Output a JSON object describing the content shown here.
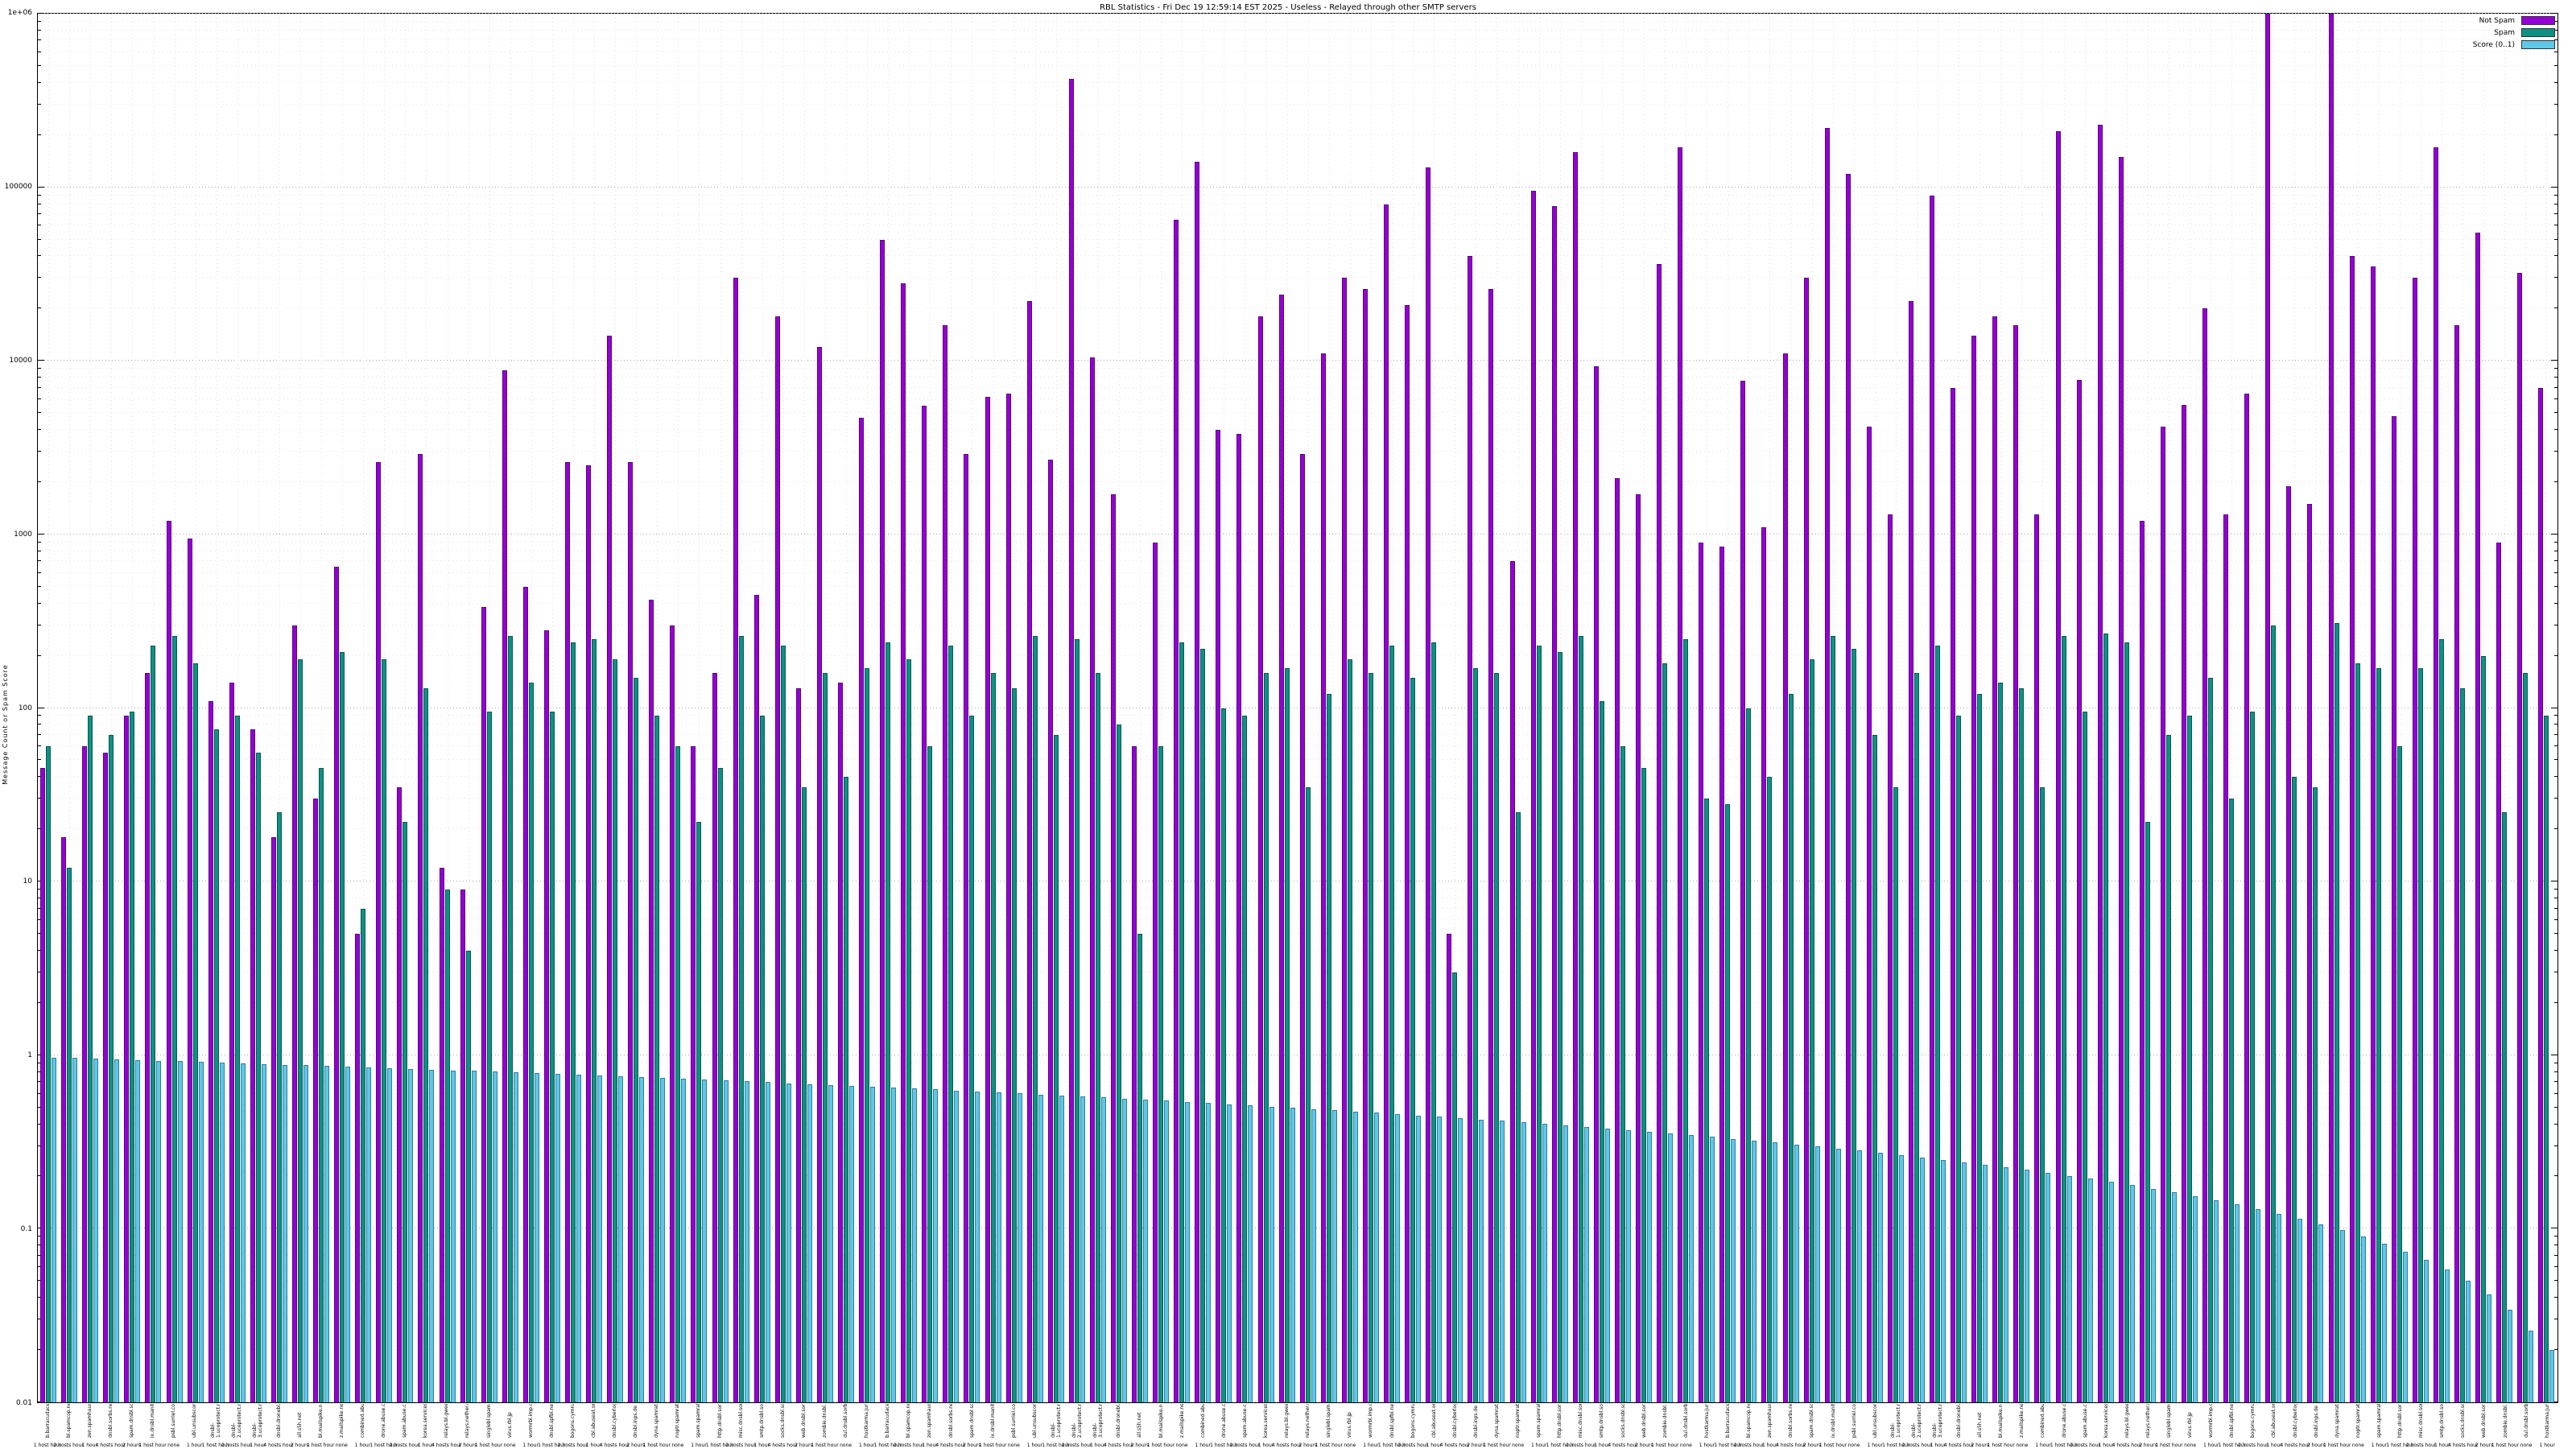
{
  "page": {
    "title": "RBL Statistics - Fri Dec 19 12:59:14 EST 2025 - Useless - Relayed through other SMTP servers"
  },
  "chart_data": {
    "type": "bar",
    "scale": "log",
    "title": "RBL Statistics - Fri Dec 19 12:59:14 EST 2025 - Useless - Relayed through other SMTP servers",
    "ylabel": "Message Count or Spam Score",
    "ylim": [
      0.01,
      1000000
    ],
    "grid": true,
    "legend_position": "top-right",
    "ytick_labels": [
      "1e+06",
      "100000",
      "10000",
      "1000",
      "100",
      "10",
      "1",
      "0.1",
      "0.01"
    ],
    "categories": [
      "b.barracudacentral.org|1 host hour",
      "bl.spamcop.net|2 hosts hour",
      "zen.spamhaus.org|1 hour",
      "dnsbl.sorbs.net|4 hosts hour",
      "spam.dnsbl.sorbs.net|2 hours",
      "ix.dnsbl.manitu.net|1 host hour",
      "psbl.surriel.com|none",
      "ubl.unsubscore.com|1 hour",
      "dnsbl-1.uceprotect.net|1 host hour",
      "dnsbl-2.uceprotect.net|2 hosts hour",
      "dnsbl-3.uceprotect.net|1 hour",
      "dnsbl.dronebl.org|4 hosts hour",
      "all.s5h.net|2 hours",
      "bl.mailspike.net|1 host hour",
      "z.mailspike.net|none",
      "combined.abuse.ch|1 hour",
      "drone.abuse.ch|1 host hour",
      "spam.abuse.ch|2 hosts hour",
      "korea.services.net|1 hour",
      "relays.bl.gweep.ca|4 hosts hour",
      "relays.nether.net|2 hours",
      "singlebl.spamgrouper.com|1 host hour",
      "virus.rbl.jp|none",
      "wormrbl.imp.ch|1 hour",
      "dnsbl.spfbl.net|1 host hour",
      "bogons.cymru.com|2 hosts hour",
      "cbl.abuseat.org|1 hour",
      "dnsbl.cyberlogic.net|4 hosts hour",
      "dnsbl.inps.de|2 hours",
      "dyna.spamrats.com|1 host hour",
      "noptr.spamrats.com|none",
      "spam.spamrats.com|1 hour",
      "http.dnsbl.sorbs.net|1 host hour",
      "misc.dnsbl.sorbs.net|2 hosts hour",
      "smtp.dnsbl.sorbs.net|1 hour",
      "socks.dnsbl.sorbs.net|4 hosts hour",
      "web.dnsbl.sorbs.net|2 hours",
      "zombie.dnsbl.sorbs.net|1 host hour",
      "dul.dnsbl.sorbs.net|none",
      "hostkarma.junkemailfilter.com|1 hour",
      "b.barracudacentral.org|1 host hour",
      "bl.spamcop.net|2 hosts hour",
      "zen.spamhaus.org|1 hour",
      "dnsbl.sorbs.net|4 hosts hour",
      "spam.dnsbl.sorbs.net|2 hours",
      "ix.dnsbl.manitu.net|1 host hour",
      "psbl.surriel.com|none",
      "ubl.unsubscore.com|1 hour",
      "dnsbl-1.uceprotect.net|1 host hour",
      "dnsbl-2.uceprotect.net|2 hosts hour",
      "dnsbl-3.uceprotect.net|1 hour",
      "dnsbl.dronebl.org|4 hosts hour",
      "all.s5h.net|2 hours",
      "bl.mailspike.net|1 host hour",
      "z.mailspike.net|none",
      "combined.abuse.ch|1 hour",
      "drone.abuse.ch|1 host hour",
      "spam.abuse.ch|2 hosts hour",
      "korea.services.net|1 hour",
      "relays.bl.gweep.ca|4 hosts hour",
      "relays.nether.net|2 hours",
      "singlebl.spamgrouper.com|1 host hour",
      "virus.rbl.jp|none",
      "wormrbl.imp.ch|1 hour",
      "dnsbl.spfbl.net|1 host hour",
      "bogons.cymru.com|2 hosts hour",
      "cbl.abuseat.org|1 hour",
      "dnsbl.cyberlogic.net|4 hosts hour",
      "dnsbl.inps.de|2 hours",
      "dyna.spamrats.com|1 host hour",
      "noptr.spamrats.com|none",
      "spam.spamrats.com|1 hour",
      "http.dnsbl.sorbs.net|1 host hour",
      "misc.dnsbl.sorbs.net|2 hosts hour",
      "smtp.dnsbl.sorbs.net|1 hour",
      "socks.dnsbl.sorbs.net|4 hosts hour",
      "web.dnsbl.sorbs.net|2 hours",
      "zombie.dnsbl.sorbs.net|1 host hour",
      "dul.dnsbl.sorbs.net|none",
      "hostkarma.junkemailfilter.com|1 hour",
      "b.barracudacentral.org|1 host hour",
      "bl.spamcop.net|2 hosts hour",
      "zen.spamhaus.org|1 hour",
      "dnsbl.sorbs.net|4 hosts hour",
      "spam.dnsbl.sorbs.net|2 hours",
      "ix.dnsbl.manitu.net|1 host hour",
      "psbl.surriel.com|none",
      "ubl.unsubscore.com|1 hour",
      "dnsbl-1.uceprotect.net|1 host hour",
      "dnsbl-2.uceprotect.net|2 hosts hour",
      "dnsbl-3.uceprotect.net|1 hour",
      "dnsbl.dronebl.org|4 hosts hour",
      "all.s5h.net|2 hours",
      "bl.mailspike.net|1 host hour",
      "z.mailspike.net|none",
      "combined.abuse.ch|1 hour",
      "drone.abuse.ch|1 host hour",
      "spam.abuse.ch|2 hosts hour",
      "korea.services.net|1 hour",
      "relays.bl.gweep.ca|4 hosts hour",
      "relays.nether.net|2 hours",
      "singlebl.spamgrouper.com|1 host hour",
      "virus.rbl.jp|none",
      "wormrbl.imp.ch|1 hour",
      "dnsbl.spfbl.net|1 host hour",
      "bogons.cymru.com|2 hosts hour",
      "cbl.abuseat.org|1 hour",
      "dnsbl.cyberlogic.net|4 hosts hour",
      "dnsbl.inps.de|2 hours",
      "dyna.spamrats.com|1 host hour",
      "noptr.spamrats.com|none",
      "spam.spamrats.com|1 hour",
      "http.dnsbl.sorbs.net|1 host hour",
      "misc.dnsbl.sorbs.net|2 hosts hour",
      "smtp.dnsbl.sorbs.net|1 hour",
      "socks.dnsbl.sorbs.net|4 hosts hour",
      "web.dnsbl.sorbs.net|2 hours",
      "zombie.dnsbl.sorbs.net|1 host hour",
      "dul.dnsbl.sorbs.net|none",
      "hostkarma.junkemailfilter.com|1 hour"
    ],
    "series": [
      {
        "name": "Not Spam",
        "color": "#9400d3",
        "edge": "#5c0084",
        "values": [
          45,
          18,
          60,
          55,
          90,
          160,
          1200,
          950,
          110,
          140,
          75,
          18,
          300,
          30,
          650,
          5,
          2600,
          35,
          2900,
          12,
          9,
          380,
          8800,
          500,
          280,
          2600,
          2500,
          14000,
          2600,
          420,
          300,
          60,
          160,
          30000,
          450,
          18000,
          130,
          12000,
          140,
          4700,
          50000,
          28000,
          5500,
          16000,
          2900,
          6200,
          6500,
          22000,
          2700,
          420000,
          10500,
          1700,
          60,
          900,
          65000,
          140000,
          4000,
          3800,
          18000,
          24000,
          2900,
          11000,
          30000,
          26000,
          80000,
          21000,
          130000,
          5,
          40000,
          26000,
          700,
          95000,
          78000,
          160000,
          9300,
          2100,
          1700,
          36000,
          170000,
          900,
          850,
          7700,
          1100,
          11000,
          30000,
          220000,
          120000,
          4200,
          1300,
          22000,
          90000,
          7000,
          14000,
          18000,
          16000,
          1300,
          210000,
          7800,
          230000,
          150000,
          1200,
          4200,
          5600,
          20000,
          1300,
          6500,
          2000000,
          1900,
          1500,
          2000000,
          40000,
          35000,
          4800,
          30000,
          170000,
          16000,
          55000,
          900,
          32000,
          7000
        ]
      },
      {
        "name": "Spam",
        "color": "#0e9183",
        "edge": "#05594f",
        "values": [
          60,
          12,
          90,
          70,
          95,
          230,
          260,
          180,
          75,
          90,
          55,
          25,
          190,
          45,
          210,
          7,
          190,
          22,
          130,
          9,
          4,
          95,
          260,
          140,
          95,
          240,
          250,
          190,
          150,
          90,
          60,
          22,
          45,
          260,
          90,
          230,
          35,
          160,
          40,
          170,
          240,
          190,
          60,
          230,
          90,
          160,
          130,
          260,
          70,
          250,
          160,
          80,
          5,
          60,
          240,
          220,
          100,
          90,
          160,
          170,
          35,
          120,
          190,
          160,
          230,
          150,
          240,
          3,
          170,
          160,
          25,
          230,
          210,
          260,
          110,
          60,
          45,
          180,
          250,
          30,
          28,
          100,
          40,
          120,
          190,
          260,
          220,
          70,
          35,
          160,
          230,
          90,
          120,
          140,
          130,
          35,
          260,
          95,
          270,
          240,
          22,
          70,
          90,
          150,
          30,
          95,
          300,
          40,
          35,
          310,
          180,
          170,
          60,
          170,
          250,
          130,
          200,
          25,
          160,
          90
        ]
      },
      {
        "name": "Score (0..1)",
        "color": "#5ec8e6",
        "edge": "#2e7ca3",
        "values": [
          0.97,
          0.962,
          0.954,
          0.946,
          0.938,
          0.93,
          0.922,
          0.914,
          0.906,
          0.898,
          0.89,
          0.882,
          0.874,
          0.866,
          0.858,
          0.85,
          0.842,
          0.834,
          0.826,
          0.818,
          0.81,
          0.802,
          0.794,
          0.786,
          0.778,
          0.77,
          0.762,
          0.754,
          0.746,
          0.738,
          0.73,
          0.722,
          0.714,
          0.706,
          0.698,
          0.69,
          0.682,
          0.674,
          0.666,
          0.658,
          0.65,
          0.642,
          0.634,
          0.626,
          0.618,
          0.61,
          0.602,
          0.594,
          0.586,
          0.578,
          0.57,
          0.562,
          0.554,
          0.546,
          0.538,
          0.53,
          0.522,
          0.514,
          0.506,
          0.498,
          0.49,
          0.482,
          0.474,
          0.466,
          0.458,
          0.45,
          0.442,
          0.434,
          0.426,
          0.418,
          0.41,
          0.402,
          0.394,
          0.386,
          0.378,
          0.37,
          0.362,
          0.354,
          0.346,
          0.338,
          0.33,
          0.322,
          0.314,
          0.306,
          0.298,
          0.29,
          0.282,
          0.274,
          0.266,
          0.258,
          0.25,
          0.242,
          0.234,
          0.226,
          0.218,
          0.21,
          0.202,
          0.194,
          0.186,
          0.178,
          0.17,
          0.162,
          0.154,
          0.146,
          0.138,
          0.13,
          0.122,
          0.114,
          0.106,
          0.098,
          0.09,
          0.082,
          0.074,
          0.066,
          0.058,
          0.05,
          0.042,
          0.034,
          0.026,
          0.02
        ]
      }
    ]
  }
}
